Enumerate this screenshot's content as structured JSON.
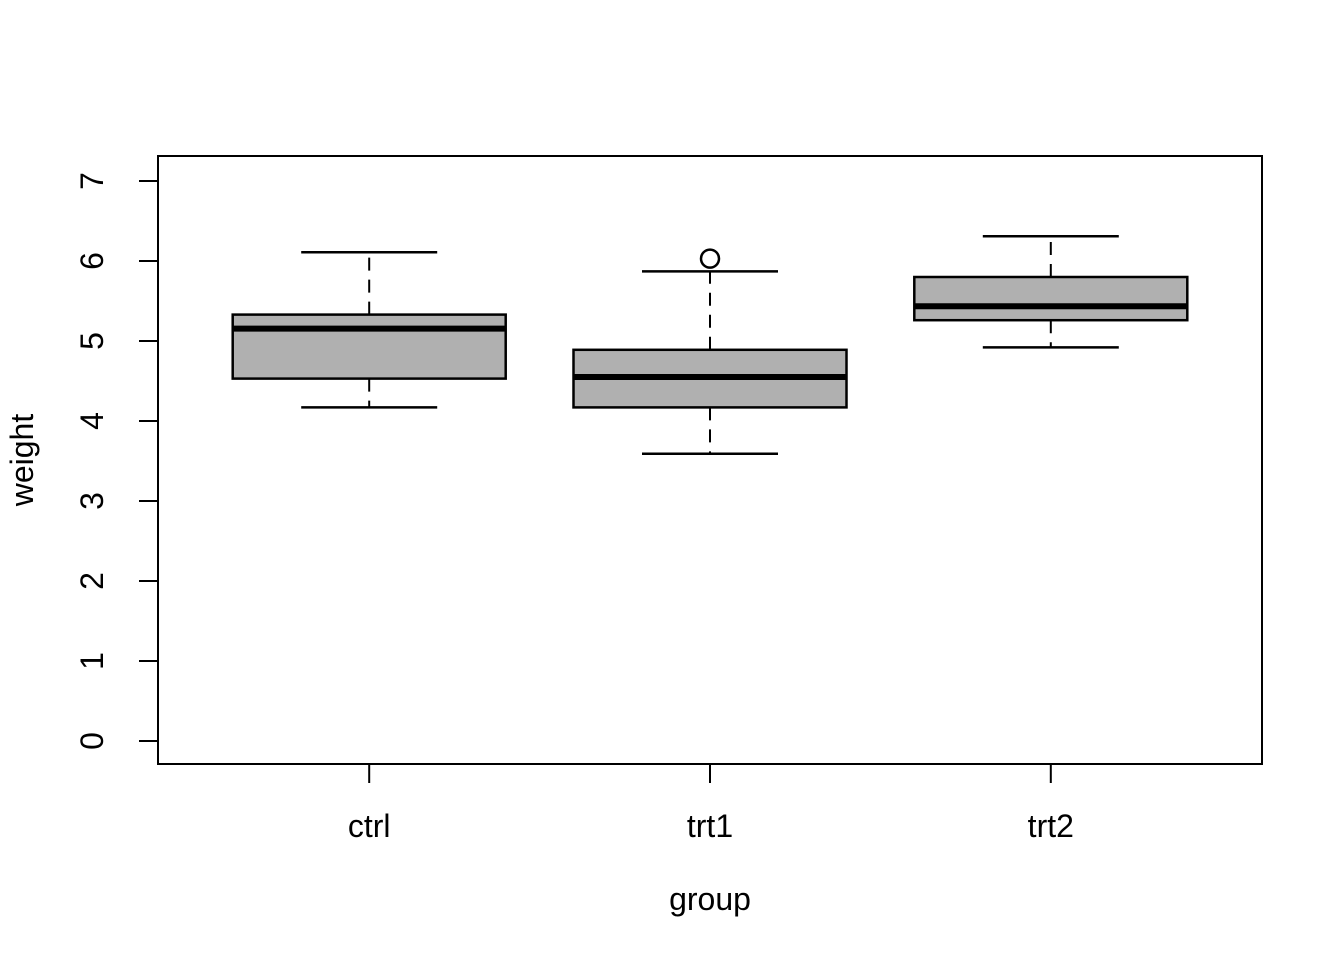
{
  "chart_data": {
    "type": "boxplot",
    "title": "",
    "xlabel": "group",
    "ylabel": "weight",
    "categories": [
      "ctrl",
      "trt1",
      "trt2"
    ],
    "ylim": [
      0,
      7
    ],
    "yticks": [
      0,
      1,
      2,
      3,
      4,
      5,
      6,
      7
    ],
    "grid": false,
    "legend": null,
    "style": {
      "box_fill": "#b0b0b0",
      "line_color": "#000000",
      "background": "#ffffff",
      "whisker_linestyle": "dashed",
      "outlier_marker": "open-circle"
    },
    "series": [
      {
        "name": "ctrl",
        "whisker_low": 4.17,
        "q1": 4.53,
        "median": 5.155,
        "q3": 5.33,
        "whisker_high": 6.11,
        "outliers": []
      },
      {
        "name": "trt1",
        "whisker_low": 3.59,
        "q1": 4.17,
        "median": 4.55,
        "q3": 4.89,
        "whisker_high": 5.87,
        "outliers": [
          6.03
        ]
      },
      {
        "name": "trt2",
        "whisker_low": 4.92,
        "q1": 5.26,
        "median": 5.435,
        "q3": 5.8,
        "whisker_high": 6.31,
        "outliers": []
      }
    ]
  }
}
